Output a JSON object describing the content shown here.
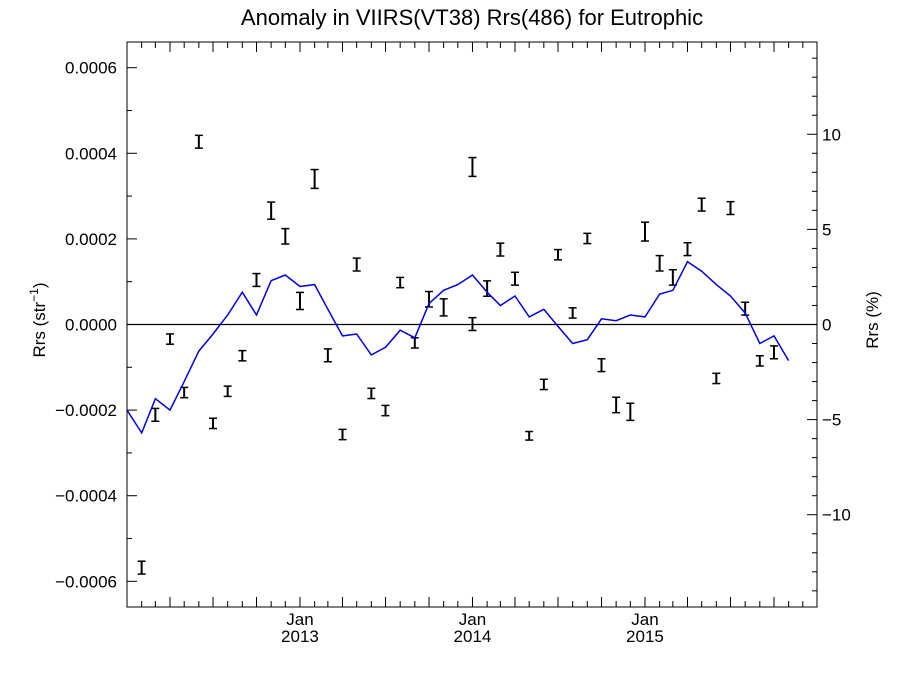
{
  "chart_data": {
    "type": "line",
    "title": "Anomaly in VIIRS(VT38) Rrs(486) for Eutrophic",
    "ylabel_left": "Rrs (str⁻¹)",
    "ylabel_right": "Rrs (%)",
    "x_range": [
      "2012-01-01",
      "2015-12-31"
    ],
    "ylim_left": [
      -0.00066,
      0.00066
    ],
    "ylim_right": [
      -14.85,
      14.85
    ],
    "x_ticks": [
      {
        "month": "Jan",
        "year": "2013",
        "date": "2013-01-01"
      },
      {
        "month": "Jan",
        "year": "2014",
        "date": "2014-01-01"
      },
      {
        "month": "Jan",
        "year": "2015",
        "date": "2015-01-01"
      }
    ],
    "y_ticks_left": [
      "0.0006",
      "0.0004",
      "0.0002",
      "0.0000",
      "−0.0002",
      "−0.0004",
      "−0.0006"
    ],
    "y_tick_values_left": [
      0.0006,
      0.0004,
      0.0002,
      0.0,
      -0.0002,
      -0.0004,
      -0.0006
    ],
    "y_ticks_right": [
      "10",
      "5",
      "0",
      "−5",
      "−10"
    ],
    "y_tick_values_right": [
      10,
      5,
      0,
      -5,
      -10
    ],
    "zero_line": true,
    "series": [
      {
        "kind": "errorbar",
        "color": "#000000",
        "points": [
          {
            "x": "2012-02-01",
            "y": -0.000568,
            "err": 1.5e-05
          },
          {
            "x": "2012-03-01",
            "y": -0.000211,
            "err": 1.5e-05
          },
          {
            "x": "2012-04-01",
            "y": -3.4e-05,
            "err": 1.2e-05
          },
          {
            "x": "2012-05-01",
            "y": -0.000159,
            "err": 1.2e-05
          },
          {
            "x": "2012-06-01",
            "y": 0.000427,
            "err": 1.5e-05
          },
          {
            "x": "2012-07-01",
            "y": -0.000231,
            "err": 1.2e-05
          },
          {
            "x": "2012-08-01",
            "y": -0.000156,
            "err": 1.2e-05
          },
          {
            "x": "2012-09-01",
            "y": -7.3e-05,
            "err": 1.2e-05
          },
          {
            "x": "2012-10-01",
            "y": 0.000104,
            "err": 1.5e-05
          },
          {
            "x": "2012-11-01",
            "y": 0.000266,
            "err": 2e-05
          },
          {
            "x": "2012-12-01",
            "y": 0.000206,
            "err": 1.8e-05
          },
          {
            "x": "2013-01-01",
            "y": 5.5e-05,
            "err": 2e-05
          },
          {
            "x": "2013-02-01",
            "y": 0.00034,
            "err": 2.2e-05
          },
          {
            "x": "2013-03-01",
            "y": -7.2e-05,
            "err": 1.5e-05
          },
          {
            "x": "2013-04-01",
            "y": -0.000257,
            "err": 1.2e-05
          },
          {
            "x": "2013-05-01",
            "y": 0.00014,
            "err": 1.5e-05
          },
          {
            "x": "2013-06-01",
            "y": -0.000161,
            "err": 1.2e-05
          },
          {
            "x": "2013-07-01",
            "y": -0.000201,
            "err": 1.2e-05
          },
          {
            "x": "2013-08-01",
            "y": 9.8e-05,
            "err": 1.2e-05
          },
          {
            "x": "2013-09-01",
            "y": -4.3e-05,
            "err": 1.2e-05
          },
          {
            "x": "2013-10-01",
            "y": 5.9e-05,
            "err": 1.8e-05
          },
          {
            "x": "2013-11-01",
            "y": 4e-05,
            "err": 2e-05
          },
          {
            "x": "2014-01-01",
            "y": 1e-06,
            "err": 1.5e-05
          },
          {
            "x": "2014-01-01",
            "y": 0.000368,
            "err": 2.2e-05
          },
          {
            "x": "2014-02-01",
            "y": 8.4e-05,
            "err": 1.8e-05
          },
          {
            "x": "2014-03-01",
            "y": 0.000175,
            "err": 1.5e-05
          },
          {
            "x": "2014-04-01",
            "y": 0.000107,
            "err": 1.5e-05
          },
          {
            "x": "2014-05-01",
            "y": -0.00026,
            "err": 1e-05
          },
          {
            "x": "2014-06-01",
            "y": -0.00014,
            "err": 1.2e-05
          },
          {
            "x": "2014-07-01",
            "y": 0.000163,
            "err": 1.2e-05
          },
          {
            "x": "2014-08-01",
            "y": 2.7e-05,
            "err": 1.2e-05
          },
          {
            "x": "2014-09-01",
            "y": 0.000201,
            "err": 1.2e-05
          },
          {
            "x": "2014-10-01",
            "y": -9.5e-05,
            "err": 1.5e-05
          },
          {
            "x": "2014-11-01",
            "y": -0.000188,
            "err": 1.8e-05
          },
          {
            "x": "2014-12-01",
            "y": -0.000204,
            "err": 2e-05
          },
          {
            "x": "2015-01-01",
            "y": 0.000217,
            "err": 2.2e-05
          },
          {
            "x": "2015-02-01",
            "y": 0.000143,
            "err": 1.8e-05
          },
          {
            "x": "2015-03-01",
            "y": 0.00011,
            "err": 1.8e-05
          },
          {
            "x": "2015-04-01",
            "y": 0.000176,
            "err": 1.5e-05
          },
          {
            "x": "2015-05-01",
            "y": 0.00028,
            "err": 1.5e-05
          },
          {
            "x": "2015-06-01",
            "y": -0.000126,
            "err": 1.2e-05
          },
          {
            "x": "2015-07-01",
            "y": 0.000272,
            "err": 1.5e-05
          },
          {
            "x": "2015-08-01",
            "y": 3.7e-05,
            "err": 1.5e-05
          },
          {
            "x": "2015-09-01",
            "y": -8.5e-05,
            "err": 1.2e-05
          },
          {
            "x": "2015-10-01",
            "y": -6.5e-05,
            "err": 1.5e-05
          }
        ]
      },
      {
        "kind": "line",
        "color": "#0000e6",
        "axis": "right",
        "points": [
          {
            "x": "2012-01-01",
            "y": -4.5
          },
          {
            "x": "2012-02-01",
            "y": -5.7
          },
          {
            "x": "2012-03-01",
            "y": -3.9
          },
          {
            "x": "2012-04-01",
            "y": -4.5
          },
          {
            "x": "2012-05-01",
            "y": -3.0
          },
          {
            "x": "2012-06-01",
            "y": -1.4
          },
          {
            "x": "2012-07-01",
            "y": -0.5
          },
          {
            "x": "2012-08-01",
            "y": 0.5
          },
          {
            "x": "2012-09-01",
            "y": 1.7
          },
          {
            "x": "2012-10-01",
            "y": 0.5
          },
          {
            "x": "2012-11-01",
            "y": 2.3
          },
          {
            "x": "2012-12-01",
            "y": 2.6
          },
          {
            "x": "2013-01-01",
            "y": 2.0
          },
          {
            "x": "2013-02-01",
            "y": 2.1
          },
          {
            "x": "2013-03-01",
            "y": 0.8
          },
          {
            "x": "2013-04-01",
            "y": -0.6
          },
          {
            "x": "2013-05-01",
            "y": -0.5
          },
          {
            "x": "2013-06-01",
            "y": -1.6
          },
          {
            "x": "2013-07-01",
            "y": -1.2
          },
          {
            "x": "2013-08-01",
            "y": -0.3
          },
          {
            "x": "2013-09-01",
            "y": -0.7
          },
          {
            "x": "2013-10-01",
            "y": 1.1
          },
          {
            "x": "2013-11-01",
            "y": 1.8
          },
          {
            "x": "2013-12-01",
            "y": 2.1
          },
          {
            "x": "2014-01-01",
            "y": 2.6
          },
          {
            "x": "2014-02-01",
            "y": 1.7
          },
          {
            "x": "2014-03-01",
            "y": 1.0
          },
          {
            "x": "2014-04-01",
            "y": 1.5
          },
          {
            "x": "2014-05-01",
            "y": 0.4
          },
          {
            "x": "2014-06-01",
            "y": 0.8
          },
          {
            "x": "2014-07-01",
            "y": -0.1
          },
          {
            "x": "2014-08-01",
            "y": -1.0
          },
          {
            "x": "2014-09-01",
            "y": -0.8
          },
          {
            "x": "2014-10-01",
            "y": 0.3
          },
          {
            "x": "2014-11-01",
            "y": 0.2
          },
          {
            "x": "2014-12-01",
            "y": 0.5
          },
          {
            "x": "2015-01-01",
            "y": 0.4
          },
          {
            "x": "2015-02-01",
            "y": 1.6
          },
          {
            "x": "2015-03-01",
            "y": 1.8
          },
          {
            "x": "2015-04-01",
            "y": 3.3
          },
          {
            "x": "2015-05-01",
            "y": 2.8
          },
          {
            "x": "2015-06-01",
            "y": 2.1
          },
          {
            "x": "2015-07-01",
            "y": 1.5
          },
          {
            "x": "2015-08-01",
            "y": 0.6
          },
          {
            "x": "2015-09-01",
            "y": -1.0
          },
          {
            "x": "2015-10-01",
            "y": -0.6
          },
          {
            "x": "2015-11-01",
            "y": -1.9
          }
        ]
      }
    ]
  }
}
